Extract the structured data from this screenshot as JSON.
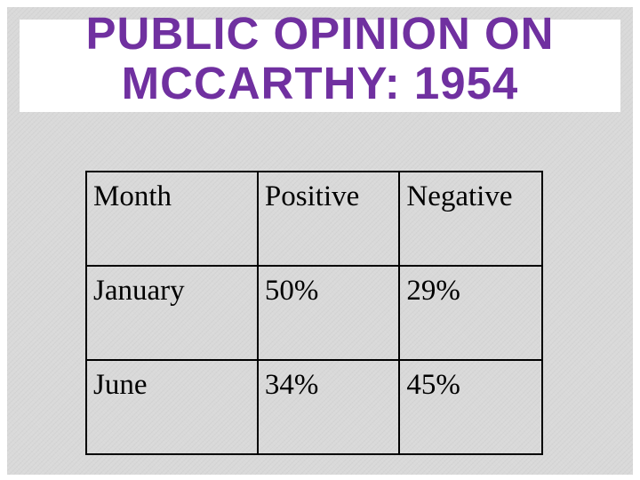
{
  "slide": {
    "title_line1": "PUBLIC OPINION ON",
    "title_line2": "MCCARTHY: 1954",
    "colors": {
      "title": "#7030a0",
      "background": "#d9d9d9",
      "title_band": "#ffffff",
      "table_text": "#000000"
    }
  },
  "table": {
    "headers": [
      "Month",
      "Positive",
      "Negative"
    ],
    "rows": [
      [
        "January",
        "50%",
        "29%"
      ],
      [
        "June",
        "34%",
        "45%"
      ]
    ]
  }
}
